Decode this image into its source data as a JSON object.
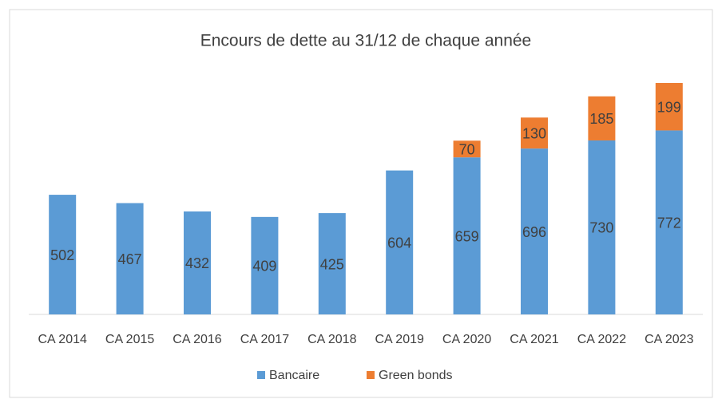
{
  "chart_data": {
    "type": "stacked_bar",
    "title": "Encours de dette au 31/12 de chaque année",
    "categories": [
      "CA 2014",
      "CA 2015",
      "CA 2016",
      "CA 2017",
      "CA 2018",
      "CA 2019",
      "CA 2020",
      "CA 2021",
      "CA 2022",
      "CA 2023"
    ],
    "series": [
      {
        "name": "Bancaire",
        "color": "#5b9bd5",
        "values": [
          502,
          467,
          432,
          409,
          425,
          604,
          659,
          696,
          730,
          772
        ]
      },
      {
        "name": "Green bonds",
        "color": "#ed7d31",
        "values": [
          null,
          null,
          null,
          null,
          null,
          null,
          70,
          130,
          185,
          199
        ]
      }
    ],
    "legend": "bottom"
  }
}
